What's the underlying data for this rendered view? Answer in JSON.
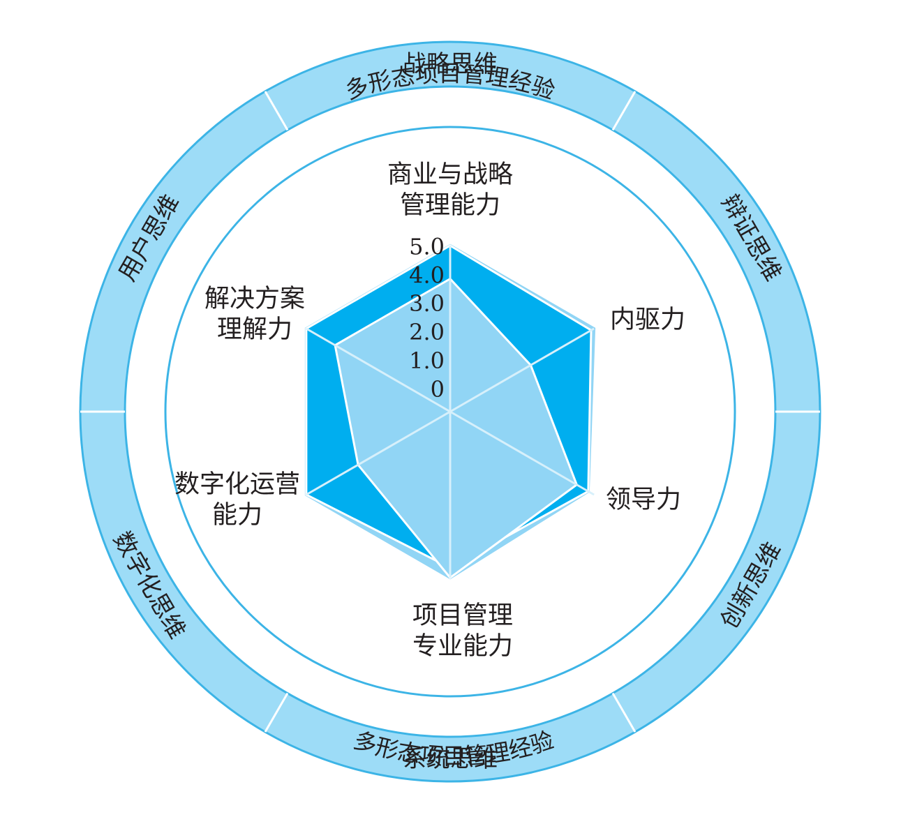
{
  "outer_ring": {
    "segments": [
      {
        "label": "战略思维"
      },
      {
        "label": "辩证思维"
      },
      {
        "label": "创新思维"
      },
      {
        "label": "系统思维"
      },
      {
        "label": "数字化思维"
      },
      {
        "label": "用户思维"
      }
    ]
  },
  "experience_band": {
    "top": "多形态项目管理经验",
    "bottom": "多形态项目管理经验"
  },
  "chart_data": {
    "type": "radar",
    "axes": [
      {
        "lines": [
          "商业与战略",
          "管理能力"
        ]
      },
      {
        "lines": [
          "内驱力"
        ]
      },
      {
        "lines": [
          "领导力"
        ]
      },
      {
        "lines": [
          "项目管理",
          "专业能力"
        ]
      },
      {
        "lines": [
          "数字化运营",
          "能力"
        ]
      },
      {
        "lines": [
          "解决方案",
          "理解力"
        ]
      }
    ],
    "ticks": [
      "0",
      "1.0",
      "2.0",
      "3.0",
      "4.0",
      "5.0"
    ],
    "range": [
      0,
      5
    ],
    "series": [
      {
        "values": [
          5.0,
          5.0,
          4.8,
          5.0,
          5.0,
          5.0
        ],
        "color": "#ffffff",
        "style": "outline"
      },
      {
        "values": [
          5.0,
          4.9,
          4.8,
          4.7,
          5.0,
          5.0
        ],
        "color": "#00aeef"
      },
      {
        "values": [
          4.0,
          2.8,
          4.4,
          5.0,
          3.2,
          4.0
        ],
        "color": "#91d5f5"
      }
    ]
  },
  "colors": {
    "ring_fill": "#9ddcf7",
    "ring_stroke": "#3cb4e6",
    "radar_dark": "#00aeef",
    "radar_light": "#91d5f5"
  }
}
